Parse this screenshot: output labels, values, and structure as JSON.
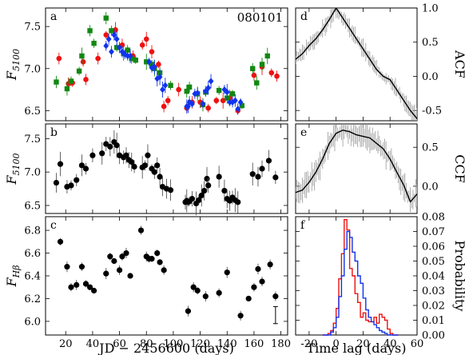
{
  "chart_data": [
    {
      "id": "a",
      "type": "scatter",
      "panel_label": "a",
      "object_label": "080101",
      "ylabel": "F_5100",
      "xlim": [
        5,
        185
      ],
      "ylim": [
        6.38,
        7.72
      ],
      "yticks": [
        6.5,
        7.0,
        7.5
      ],
      "xticks": [
        20,
        40,
        60,
        80,
        100,
        120,
        140,
        160,
        180
      ],
      "colors": {
        "red": "#ee1111",
        "green": "#118811",
        "blue": "#1133ee"
      },
      "series": [
        {
          "marker": "circle",
          "color": "red",
          "points": [
            [
              15,
              7.12
            ],
            [
              22,
              6.82
            ],
            [
              25,
              6.83
            ],
            [
              33,
              7.08
            ],
            [
              35,
              6.87
            ],
            [
              44,
              7.12
            ],
            [
              50,
              7.4
            ],
            [
              57,
              7.46
            ],
            [
              62,
              7.28
            ],
            [
              70,
              7.15
            ],
            [
              77,
              7.28
            ],
            [
              80,
              7.35
            ],
            [
              84,
              7.2
            ],
            [
              89,
              7.05
            ],
            [
              93,
              6.55
            ],
            [
              96,
              6.62
            ],
            [
              104,
              6.75
            ],
            [
              110,
              6.53
            ],
            [
              114,
              6.6
            ],
            [
              120,
              6.6
            ],
            [
              126,
              6.53
            ],
            [
              132,
              6.62
            ],
            [
              137,
              6.62
            ],
            [
              142,
              6.65
            ],
            [
              148,
              6.5
            ],
            [
              160,
              6.92
            ],
            [
              166,
              7.02
            ],
            [
              173,
              6.95
            ],
            [
              177,
              6.91
            ]
          ]
        },
        {
          "marker": "square",
          "color": "green",
          "points": [
            [
              13,
              6.84
            ],
            [
              21,
              6.76
            ],
            [
              24,
              6.85
            ],
            [
              30,
              6.97
            ],
            [
              32,
              7.15
            ],
            [
              38,
              7.45
            ],
            [
              41,
              7.3
            ],
            [
              50,
              7.6
            ],
            [
              54,
              7.45
            ],
            [
              58,
              7.25
            ],
            [
              63,
              7.18
            ],
            [
              66,
              7.22
            ],
            [
              69,
              7.12
            ],
            [
              72,
              7.1
            ],
            [
              80,
              7.08
            ],
            [
              84,
              7.05
            ],
            [
              86,
              7.0
            ],
            [
              90,
              6.95
            ],
            [
              98,
              6.8
            ],
            [
              110,
              6.73
            ],
            [
              112,
              6.78
            ],
            [
              118,
              6.7
            ],
            [
              122,
              6.57
            ],
            [
              124,
              6.72
            ],
            [
              134,
              6.74
            ],
            [
              140,
              6.65
            ],
            [
              144,
              6.7
            ],
            [
              151,
              6.56
            ],
            [
              159,
              7.0
            ],
            [
              162,
              6.83
            ],
            [
              166,
              7.05
            ],
            [
              170,
              7.15
            ]
          ]
        },
        {
          "marker": "diamond",
          "color": "blue",
          "points": [
            [
              50,
              7.27
            ],
            [
              52,
              7.35
            ],
            [
              54,
              7.2
            ],
            [
              56,
              7.4
            ],
            [
              58,
              7.35
            ],
            [
              60,
              7.25
            ],
            [
              62,
              7.2
            ],
            [
              64,
              7.17
            ],
            [
              66,
              7.15
            ],
            [
              68,
              7.15
            ],
            [
              82,
              7.08
            ],
            [
              84,
              7.01
            ],
            [
              86,
              7.02
            ],
            [
              88,
              6.88
            ],
            [
              90,
              6.9
            ],
            [
              92,
              6.75
            ],
            [
              94,
              6.8
            ],
            [
              110,
              6.55
            ],
            [
              111,
              6.55
            ],
            [
              112,
              6.6
            ],
            [
              114,
              6.58
            ],
            [
              116,
              6.7
            ],
            [
              118,
              6.71
            ],
            [
              122,
              6.58
            ],
            [
              124,
              6.73
            ],
            [
              126,
              6.77
            ],
            [
              128,
              6.85
            ],
            [
              138,
              6.75
            ],
            [
              140,
              6.72
            ],
            [
              142,
              6.6
            ],
            [
              144,
              6.6
            ],
            [
              146,
              6.62
            ],
            [
              148,
              6.52
            ],
            [
              150,
              6.6
            ]
          ]
        }
      ]
    },
    {
      "id": "b",
      "type": "scatter",
      "panel_label": "b",
      "ylabel": "F_5100",
      "xlim": [
        5,
        185
      ],
      "ylim": [
        6.38,
        7.72
      ],
      "yticks": [
        6.5,
        7.0,
        7.5
      ],
      "xticks": [
        20,
        40,
        60,
        80,
        100,
        120,
        140,
        160,
        180
      ],
      "points": [
        [
          13,
          6.84
        ],
        [
          16,
          7.12
        ],
        [
          21,
          6.78
        ],
        [
          24,
          6.8
        ],
        [
          28,
          6.88
        ],
        [
          32,
          7.1
        ],
        [
          35,
          7.05
        ],
        [
          40,
          7.25
        ],
        [
          47,
          7.28
        ],
        [
          50,
          7.42
        ],
        [
          53,
          7.38
        ],
        [
          56,
          7.45
        ],
        [
          58,
          7.4
        ],
        [
          60,
          7.25
        ],
        [
          63,
          7.22
        ],
        [
          65,
          7.25
        ],
        [
          67,
          7.18
        ],
        [
          69,
          7.15
        ],
        [
          71,
          7.08
        ],
        [
          77,
          7.07
        ],
        [
          79,
          7.1
        ],
        [
          81,
          7.25
        ],
        [
          84,
          7.05
        ],
        [
          86,
          7.0
        ],
        [
          88,
          7.1
        ],
        [
          90,
          6.93
        ],
        [
          92,
          6.78
        ],
        [
          95,
          6.75
        ],
        [
          98,
          6.73
        ],
        [
          109,
          6.55
        ],
        [
          110,
          6.57
        ],
        [
          111,
          6.55
        ],
        [
          112,
          6.56
        ],
        [
          114,
          6.6
        ],
        [
          117,
          6.53
        ],
        [
          119,
          6.58
        ],
        [
          121,
          6.65
        ],
        [
          123,
          6.72
        ],
        [
          125,
          6.9
        ],
        [
          126,
          6.8
        ],
        [
          134,
          6.93
        ],
        [
          138,
          6.72
        ],
        [
          140,
          6.6
        ],
        [
          142,
          6.57
        ],
        [
          144,
          6.62
        ],
        [
          146,
          6.58
        ],
        [
          148,
          6.55
        ],
        [
          159,
          6.97
        ],
        [
          163,
          6.93
        ],
        [
          166,
          7.05
        ],
        [
          171,
          7.17
        ],
        [
          176,
          6.92
        ]
      ],
      "err": 0.15
    },
    {
      "id": "c",
      "type": "scatter",
      "panel_label": "c",
      "ylabel": "F_Hβ",
      "xlabel": "JD  −  2456600 (days)",
      "xlim": [
        5,
        185
      ],
      "ylim": [
        5.88,
        6.92
      ],
      "yticks": [
        6.0,
        6.2,
        6.4,
        6.6,
        6.8
      ],
      "xticks": [
        20,
        40,
        60,
        80,
        100,
        120,
        140,
        160,
        180
      ],
      "points": [
        [
          16,
          6.7
        ],
        [
          21,
          6.48
        ],
        [
          24,
          6.3
        ],
        [
          28,
          6.32
        ],
        [
          32,
          6.48
        ],
        [
          35,
          6.33
        ],
        [
          38,
          6.3
        ],
        [
          41,
          6.27
        ],
        [
          50,
          6.42
        ],
        [
          53,
          6.57
        ],
        [
          56,
          6.53
        ],
        [
          60,
          6.45
        ],
        [
          62,
          6.57
        ],
        [
          65,
          6.6
        ],
        [
          68,
          6.4
        ],
        [
          76,
          6.8
        ],
        [
          80,
          6.57
        ],
        [
          82,
          6.55
        ],
        [
          84,
          6.55
        ],
        [
          88,
          6.6
        ],
        [
          90,
          6.52
        ],
        [
          93,
          6.45
        ],
        [
          111,
          6.09
        ],
        [
          115,
          6.3
        ],
        [
          118,
          6.27
        ],
        [
          124,
          6.22
        ],
        [
          134,
          6.25
        ],
        [
          140,
          6.43
        ],
        [
          150,
          6.05
        ],
        [
          156,
          6.2
        ],
        [
          160,
          6.3
        ],
        [
          163,
          6.46
        ],
        [
          166,
          6.35
        ],
        [
          172,
          6.5
        ],
        [
          176,
          6.22
        ]
      ],
      "errbar_marker": {
        "x": 176,
        "y_low": 5.98,
        "y_high": 6.13
      }
    },
    {
      "id": "d",
      "type": "line",
      "panel_label": "d",
      "ylabel": "ACF",
      "xlim": [
        -30,
        60
      ],
      "ylim": [
        -0.65,
        1.0
      ],
      "yticks": [
        -0.5,
        0.0,
        0.5,
        1.0
      ],
      "xticks": [
        -20,
        0,
        20,
        40,
        60
      ],
      "line": [
        [
          -30,
          0.25
        ],
        [
          -25,
          0.33
        ],
        [
          -20,
          0.45
        ],
        [
          -15,
          0.55
        ],
        [
          -10,
          0.68
        ],
        [
          -5,
          0.83
        ],
        [
          0,
          1.0
        ],
        [
          5,
          0.85
        ],
        [
          10,
          0.7
        ],
        [
          15,
          0.55
        ],
        [
          20,
          0.4
        ],
        [
          25,
          0.25
        ],
        [
          30,
          0.1
        ],
        [
          35,
          0.0
        ],
        [
          40,
          -0.05
        ],
        [
          45,
          -0.2
        ],
        [
          50,
          -0.35
        ],
        [
          55,
          -0.5
        ],
        [
          60,
          -0.62
        ]
      ]
    },
    {
      "id": "e",
      "type": "line",
      "panel_label": "e",
      "ylabel": "CCF",
      "xlim": [
        -30,
        60
      ],
      "ylim": [
        -0.35,
        0.8
      ],
      "yticks": [
        0.0,
        0.5
      ],
      "xticks": [
        -20,
        0,
        20,
        40,
        60
      ],
      "line": [
        [
          -30,
          -0.08
        ],
        [
          -25,
          -0.05
        ],
        [
          -20,
          0.05
        ],
        [
          -15,
          0.18
        ],
        [
          -10,
          0.35
        ],
        [
          -5,
          0.55
        ],
        [
          0,
          0.68
        ],
        [
          5,
          0.72
        ],
        [
          10,
          0.7
        ],
        [
          15,
          0.66
        ],
        [
          20,
          0.64
        ],
        [
          25,
          0.62
        ],
        [
          30,
          0.55
        ],
        [
          35,
          0.48
        ],
        [
          40,
          0.35
        ],
        [
          45,
          0.18
        ],
        [
          50,
          0.02
        ],
        [
          55,
          -0.2
        ],
        [
          60,
          -0.1
        ]
      ]
    },
    {
      "id": "f",
      "type": "step",
      "panel_label": "f",
      "ylabel": "Probability",
      "xlabel": "Time lag (days)",
      "xlim": [
        -30,
        60
      ],
      "ylim": [
        0.0,
        0.08
      ],
      "yticks": [
        0.0,
        0.01,
        0.02,
        0.03,
        0.04,
        0.05,
        0.06,
        0.07,
        0.08
      ],
      "xticks": [
        -20,
        0,
        20,
        40,
        60
      ],
      "bin_edges": [
        -10,
        -8,
        -6,
        -4,
        -2,
        0,
        2,
        4,
        6,
        8,
        10,
        12,
        14,
        16,
        18,
        20,
        22,
        24,
        26,
        28,
        30,
        32,
        34,
        36,
        38,
        40,
        42,
        44,
        46
      ],
      "series": [
        {
          "color": "#ee1111",
          "values": [
            0.0,
            0.0,
            0.001,
            0.003,
            0.008,
            0.018,
            0.038,
            0.055,
            0.078,
            0.071,
            0.045,
            0.04,
            0.028,
            0.022,
            0.012,
            0.015,
            0.01,
            0.009,
            0.009,
            0.012,
            0.008,
            0.014,
            0.012,
            0.01,
            0.004,
            0.001,
            0.0,
            0.0
          ]
        },
        {
          "color": "#1133ee",
          "values": [
            0.0,
            0.0,
            0.0,
            0.002,
            0.005,
            0.012,
            0.026,
            0.04,
            0.058,
            0.07,
            0.066,
            0.056,
            0.05,
            0.04,
            0.035,
            0.025,
            0.017,
            0.012,
            0.009,
            0.007,
            0.005,
            0.003,
            0.002,
            0.001,
            0.0,
            0.0,
            0.0,
            0.0
          ]
        }
      ]
    }
  ]
}
